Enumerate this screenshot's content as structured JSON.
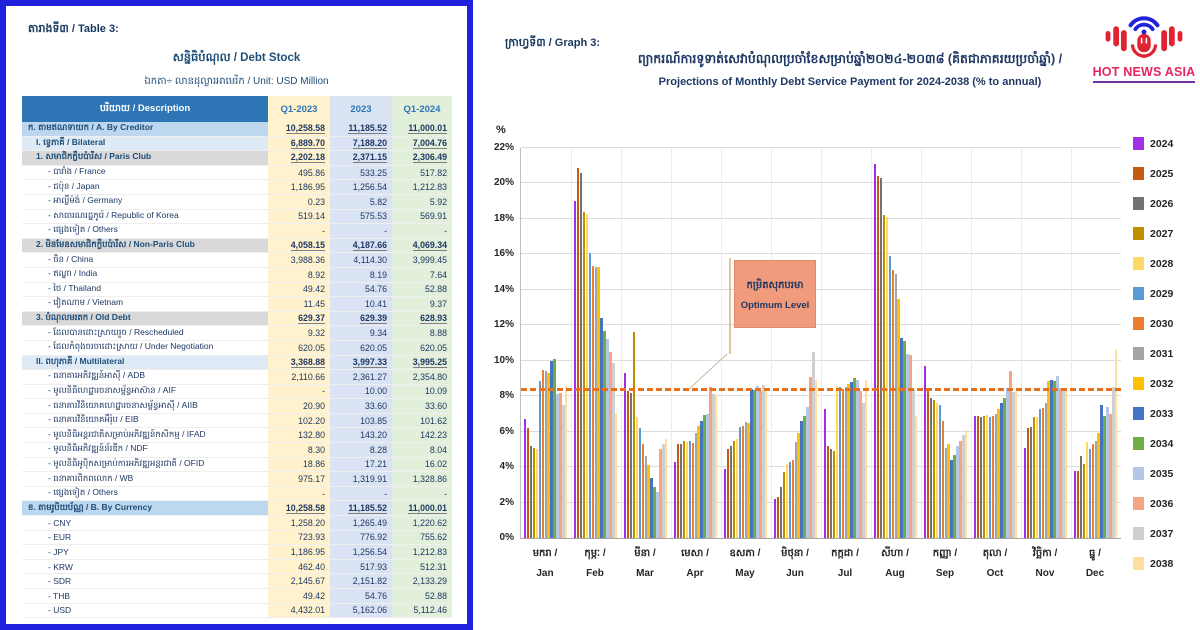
{
  "table": {
    "label": "តារាងទី៣ / Table 3:",
    "title": "សន្និធិបំណុល / Debt Stock",
    "unit": "ឯកតា÷ លានដុល្លារអាមេរិក / Unit: USD Million",
    "columns": [
      "បរិយាយ / Description",
      "Q1-2023",
      "2023",
      "Q1-2024"
    ],
    "rows": [
      {
        "label": "ក. តាមឥណទាយក / A. By Creditor",
        "v": [
          "10,258.58",
          "11,185.52",
          "11,000.01"
        ],
        "s": "a",
        "ind": 0
      },
      {
        "label": "I. ទ្វេភាគី / Bilateral",
        "v": [
          "6,889.70",
          "7,188.20",
          "7,004.76"
        ],
        "s": "r",
        "ind": 1
      },
      {
        "label": "1. សមាជិកក្លឹបប៉ារីស / Paris Club",
        "v": [
          "2,202.18",
          "2,371.15",
          "2,306.49"
        ],
        "s": "n",
        "ind": 1
      },
      {
        "label": "- បារាំង / France",
        "v": [
          "495.86",
          "533.25",
          "517.82"
        ],
        "s": "l",
        "ind": 2
      },
      {
        "label": "- ជប៉ុន / Japan",
        "v": [
          "1,186.95",
          "1,256.54",
          "1,212.83"
        ],
        "s": "l",
        "ind": 2
      },
      {
        "label": "- អាល្លឺម៉ង់ / Germany",
        "v": [
          "0.23",
          "5.82",
          "5.92"
        ],
        "s": "l",
        "ind": 2
      },
      {
        "label": "- សាធារណរដ្ឋកូរ៉េ / Republic of Korea",
        "v": [
          "519.14",
          "575.53",
          "569.91"
        ],
        "s": "l",
        "ind": 2
      },
      {
        "label": "- ផ្សេងទៀត / Others",
        "v": [
          "-",
          "-",
          "-"
        ],
        "s": "l",
        "ind": 2
      },
      {
        "label": "2. មិនមែនសមាជិកក្លឹបប៉ារីស / Non-Paris Club",
        "v": [
          "4,058.15",
          "4,187.66",
          "4,069.34"
        ],
        "s": "n",
        "ind": 1
      },
      {
        "label": "- ចិន / China",
        "v": [
          "3,988.36",
          "4,114.30",
          "3,999.45"
        ],
        "s": "l",
        "ind": 2
      },
      {
        "label": "- ឥណ្ឌា / India",
        "v": [
          "8.92",
          "8.19",
          "7.64"
        ],
        "s": "l",
        "ind": 2
      },
      {
        "label": "- ថៃ / Thailand",
        "v": [
          "49.42",
          "54.76",
          "52.88"
        ],
        "s": "l",
        "ind": 2
      },
      {
        "label": "- វៀតណាម / Vietnam",
        "v": [
          "11.45",
          "10.41",
          "9.37"
        ],
        "s": "l",
        "ind": 2
      },
      {
        "label": "3. បំណុលមរតក / Old Debt",
        "v": [
          "629.37",
          "629.39",
          "628.93"
        ],
        "s": "n",
        "ind": 1
      },
      {
        "label": "- ដែលបានដោះស្រាយរួច / Rescheduled",
        "v": [
          "9.32",
          "9.34",
          "8.88"
        ],
        "s": "l",
        "ind": 2
      },
      {
        "label": "- ដែលកំពុងចរចាដោះស្រាយ / Under Negotiation",
        "v": [
          "620.05",
          "620.05",
          "620.05"
        ],
        "s": "l",
        "ind": 2
      },
      {
        "label": "II. ពហុភាគី / Multilateral",
        "v": [
          "3,368.88",
          "3,997.33",
          "3,995.25"
        ],
        "s": "r",
        "ind": 1
      },
      {
        "label": "- ធនាគារអភិវឌ្ឍន៍អាស៊ី / ADB",
        "v": [
          "2,110.66",
          "2,361.27",
          "2,354.80"
        ],
        "s": "l",
        "ind": 2
      },
      {
        "label": "- មូលនិធិហេដ្ឋារចនាសម្ព័ន្ធអាស៊ាន / AIF",
        "v": [
          "-",
          "10.00",
          "10.09"
        ],
        "s": "l",
        "ind": 2
      },
      {
        "label": "- ធនាគារវិនិយោគហេដ្ឋារចនាសម្ព័ន្ធអាស៊ី / AIIB",
        "v": [
          "20.90",
          "33.60",
          "33.60"
        ],
        "s": "l",
        "ind": 2
      },
      {
        "label": "- ធនាគារវិនិយោគអឺរ៉ុប / EIB",
        "v": [
          "102.20",
          "103.85",
          "101.62"
        ],
        "s": "l",
        "ind": 2
      },
      {
        "label": "- មូលនិធិអន្តរជាតិសម្រាប់អភិវឌ្ឍន៍កសិកម្ម / IFAD",
        "v": [
          "132.80",
          "143.20",
          "142.23"
        ],
        "s": "l",
        "ind": 2
      },
      {
        "label": "- មូលនិធិអភិវឌ្ឍន៍ន័រឌីក / NDF",
        "v": [
          "8.30",
          "8.28",
          "8.04"
        ],
        "s": "l",
        "ind": 2
      },
      {
        "label": "- មូលនិធិអូប៉ិកសម្រាប់ការអភិវឌ្ឍអន្តរជាតិ / OFID",
        "v": [
          "18.86",
          "17.21",
          "16.02"
        ],
        "s": "l",
        "ind": 2
      },
      {
        "label": "- ធនាគារពិភពលោក / WB",
        "v": [
          "975.17",
          "1,319.91",
          "1,328.86"
        ],
        "s": "l",
        "ind": 2
      },
      {
        "label": "- ផ្សេងទៀត / Others",
        "v": [
          "-",
          "-",
          "-"
        ],
        "s": "l",
        "ind": 2
      },
      {
        "label": "ខ. តាមរូបិយប័ណ្ណ / B. By Currency",
        "v": [
          "10,258.58",
          "11,185.52",
          "11,000.01"
        ],
        "s": "a",
        "ind": 0
      },
      {
        "label": "- CNY",
        "v": [
          "1,258.20",
          "1,265.49",
          "1,220.62"
        ],
        "s": "l",
        "ind": 2
      },
      {
        "label": "- EUR",
        "v": [
          "723.93",
          "776.92",
          "755.62"
        ],
        "s": "l",
        "ind": 2
      },
      {
        "label": "- JPY",
        "v": [
          "1,186.95",
          "1,256.54",
          "1,212.83"
        ],
        "s": "l",
        "ind": 2
      },
      {
        "label": "- KRW",
        "v": [
          "462.40",
          "517.93",
          "512.31"
        ],
        "s": "l",
        "ind": 2
      },
      {
        "label": "- SDR",
        "v": [
          "2,145.67",
          "2,151.82",
          "2,133.29"
        ],
        "s": "l",
        "ind": 2
      },
      {
        "label": "- THB",
        "v": [
          "49.42",
          "54.76",
          "52.88"
        ],
        "s": "l",
        "ind": 2
      },
      {
        "label": "- USD",
        "v": [
          "4,432.01",
          "5,162.06",
          "5,112.46"
        ],
        "s": "l",
        "ind": 2
      }
    ]
  },
  "graph": {
    "label": "ក្រាហ្វទី៣ / Graph 3:",
    "title_km": "ព្យាករណ៍ការទូទាត់សេវាបំណុលប្រចាំខែសម្រាប់ឆ្នាំ២០២៤-២០៣៨ (គិតជាភាគរយប្រចាំឆ្នាំ) /",
    "title_en": "Projections of Monthly Debt Service Payment for 2024-2038 (% to annual)",
    "annotation": {
      "km": "កម្រិតសុភបរមា",
      "en": "Optimum Level",
      "level_pct": 8.3,
      "box_color": "#f29b7c"
    },
    "chart_data": {
      "type": "bar",
      "ylabel": "%",
      "ylim": [
        0,
        22
      ],
      "ytick_step": 2,
      "grid": true,
      "legend_position": "right",
      "optimum_level_pct": 8.3,
      "categories_km": [
        "មករា",
        "កុម្ភៈ",
        "មីនា",
        "មេសា",
        "ឧសភា",
        "មិថុនា",
        "កក្កដា",
        "សីហា",
        "កញ្ញា",
        "តុលា",
        "វិច្ឆិកា",
        "ធ្នូ"
      ],
      "categories_en": [
        "Jan",
        "Feb",
        "Mar",
        "Apr",
        "May",
        "Jun",
        "Jul",
        "Aug",
        "Sep",
        "Oct",
        "Nov",
        "Dec"
      ],
      "series": [
        {
          "name": "2024",
          "color": "#a22ee8",
          "values": [
            6.7,
            19.0,
            9.3,
            4.3,
            3.9,
            2.2,
            7.3,
            21.1,
            9.7,
            6.9,
            5.1,
            3.8
          ]
        },
        {
          "name": "2025",
          "color": "#c55a11",
          "values": [
            6.2,
            20.9,
            8.3,
            5.3,
            5.0,
            2.3,
            5.2,
            20.4,
            8.3,
            6.9,
            6.2,
            3.8
          ]
        },
        {
          "name": "2026",
          "color": "#767171",
          "values": [
            5.2,
            20.6,
            8.2,
            5.3,
            5.2,
            2.9,
            5.0,
            20.3,
            7.9,
            6.85,
            6.25,
            4.6
          ]
        },
        {
          "name": "2027",
          "color": "#bf8f00",
          "values": [
            5.1,
            18.4,
            11.6,
            5.5,
            5.5,
            3.7,
            4.9,
            18.2,
            7.8,
            6.9,
            6.8,
            4.2
          ]
        },
        {
          "name": "2028",
          "color": "#ffd966",
          "values": [
            5.0,
            18.3,
            6.8,
            5.4,
            5.6,
            4.2,
            8.6,
            18.1,
            7.6,
            6.95,
            6.85,
            5.4
          ]
        },
        {
          "name": "2029",
          "color": "#5b9bd5",
          "values": [
            8.85,
            16.1,
            6.2,
            5.45,
            6.25,
            4.3,
            8.5,
            15.9,
            7.5,
            6.85,
            7.3,
            5.0
          ]
        },
        {
          "name": "2030",
          "color": "#ed7d31",
          "values": [
            9.5,
            15.35,
            5.3,
            5.35,
            6.3,
            4.4,
            8.4,
            15.1,
            6.6,
            6.9,
            7.35,
            5.3
          ]
        },
        {
          "name": "2031",
          "color": "#a5a5a5",
          "values": [
            9.4,
            15.3,
            4.65,
            5.9,
            6.55,
            5.4,
            8.5,
            14.9,
            5.1,
            7.0,
            7.6,
            5.5
          ]
        },
        {
          "name": "2032",
          "color": "#ffc000",
          "values": [
            9.3,
            15.3,
            4.1,
            6.3,
            6.5,
            5.9,
            8.7,
            13.5,
            5.3,
            7.3,
            8.85,
            5.9
          ]
        },
        {
          "name": "2033",
          "color": "#4472c4",
          "values": [
            10.0,
            12.4,
            3.4,
            6.6,
            8.4,
            6.6,
            8.8,
            11.3,
            4.4,
            7.6,
            8.9,
            7.5
          ]
        },
        {
          "name": "2034",
          "color": "#70ad47",
          "values": [
            10.1,
            11.7,
            2.9,
            6.95,
            8.35,
            6.9,
            9.0,
            11.1,
            4.7,
            7.9,
            8.85,
            6.9
          ]
        },
        {
          "name": "2035",
          "color": "#b4c7e7",
          "values": [
            8.15,
            11.2,
            2.6,
            7.0,
            8.55,
            7.4,
            8.9,
            10.4,
            5.2,
            8.45,
            9.15,
            7.4
          ]
        },
        {
          "name": "2036",
          "color": "#f3a584",
          "values": [
            8.2,
            10.5,
            5.0,
            8.5,
            8.3,
            9.1,
            8.3,
            10.3,
            5.5,
            9.4,
            8.45,
            7.0
          ]
        },
        {
          "name": "2037",
          "color": "#d0cece",
          "values": [
            7.5,
            9.9,
            5.3,
            8.1,
            8.65,
            10.5,
            7.6,
            8.4,
            5.8,
            8.25,
            8.3,
            8.5
          ]
        },
        {
          "name": "2038",
          "color": "#ffdf9e",
          "values": [
            8.55,
            7.0,
            5.6,
            8.05,
            8.4,
            8.9,
            8.9,
            6.9,
            6.1,
            8.3,
            8.35,
            10.6
          ]
        }
      ]
    }
  },
  "logo": {
    "title": "HOT NEWS ASIA"
  }
}
